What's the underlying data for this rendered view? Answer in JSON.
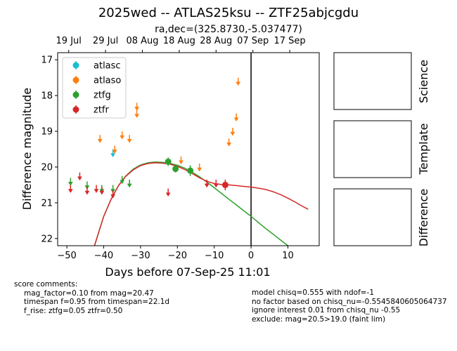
{
  "header": {
    "title": "2025wed -- ATLAS25ksu -- ZTF25abjcgdu",
    "subtitle": "ra,dec=(325.8730,-5.037477)"
  },
  "chart_data": {
    "type": "scatter",
    "xlabel": "Days before 07-Sep-25 11:01",
    "ylabel": "Difference magnitude",
    "xlim": [
      -52.5,
      18.5
    ],
    "ylim": [
      22.2,
      16.8
    ],
    "y_inverted": true,
    "x_ticks": [
      -50,
      -40,
      -30,
      -20,
      -10,
      0,
      10
    ],
    "x_tick_labels": [
      "−50",
      "−40",
      "−30",
      "−20",
      "−10",
      "0",
      "10"
    ],
    "y_ticks": [
      17,
      18,
      19,
      20,
      21,
      22
    ],
    "y_tick_labels": [
      "17",
      "18",
      "19",
      "20",
      "21",
      "22"
    ],
    "top_axis_ticks": [
      {
        "x": -49.5,
        "label": "19 Jul"
      },
      {
        "x": -39.5,
        "label": "29 Jul"
      },
      {
        "x": -29.5,
        "label": "08 Aug"
      },
      {
        "x": -19.5,
        "label": "18 Aug"
      },
      {
        "x": -9.5,
        "label": "28 Aug"
      },
      {
        "x": 0.5,
        "label": "07 Sep"
      },
      {
        "x": 10.5,
        "label": "17 Sep"
      }
    ],
    "legend_position": "top-left",
    "vertical_line_x": 0,
    "colors": {
      "atlasc": "#17becf",
      "atlaso": "#ff7f0e",
      "ztfg": "#2ca02c",
      "ztfr": "#d62728",
      "marker_line": "#000000"
    },
    "series": [
      {
        "name": "atlasc",
        "detections": [],
        "upper_limits": [
          {
            "x": -37.5,
            "y": 19.6
          }
        ]
      },
      {
        "name": "atlaso",
        "detections": [],
        "upper_limits": [
          {
            "x": -41.0,
            "y": 19.2
          },
          {
            "x": -37.0,
            "y": 19.5
          },
          {
            "x": -35.0,
            "y": 19.1
          },
          {
            "x": -33.0,
            "y": 19.2
          },
          {
            "x": -31.0,
            "y": 18.3
          },
          {
            "x": -31.0,
            "y": 18.5
          },
          {
            "x": -19.0,
            "y": 19.8
          },
          {
            "x": -14.0,
            "y": 20.0
          },
          {
            "x": -6.0,
            "y": 19.3
          },
          {
            "x": -5.0,
            "y": 19.0
          },
          {
            "x": -4.0,
            "y": 18.6
          },
          {
            "x": -3.5,
            "y": 17.6
          }
        ]
      },
      {
        "name": "ztfg",
        "detections": [
          {
            "x": -22.5,
            "y": 19.85,
            "err": 0.12
          },
          {
            "x": -20.5,
            "y": 20.05,
            "err": 0.1
          },
          {
            "x": -16.5,
            "y": 20.1,
            "err": 0.15
          }
        ],
        "upper_limits": [
          {
            "x": -49.0,
            "y": 20.4
          },
          {
            "x": -44.5,
            "y": 20.5
          },
          {
            "x": -40.5,
            "y": 20.6
          },
          {
            "x": -37.5,
            "y": 20.6
          },
          {
            "x": -35.0,
            "y": 20.35
          },
          {
            "x": -33.0,
            "y": 20.45
          }
        ]
      },
      {
        "name": "ztfr",
        "detections": [
          {
            "x": -7.0,
            "y": 20.5,
            "err": 0.15
          }
        ],
        "upper_limits": [
          {
            "x": -49.0,
            "y": 20.6
          },
          {
            "x": -46.5,
            "y": 20.25
          },
          {
            "x": -44.5,
            "y": 20.65
          },
          {
            "x": -42.0,
            "y": 20.6
          },
          {
            "x": -40.5,
            "y": 20.65
          },
          {
            "x": -37.5,
            "y": 20.75
          },
          {
            "x": -22.5,
            "y": 20.7
          },
          {
            "x": -12.0,
            "y": 20.45
          },
          {
            "x": -9.5,
            "y": 20.45
          }
        ]
      }
    ],
    "model_curves": [
      {
        "name": "ztfg",
        "x": [
          -42.5,
          -40,
          -38,
          -36,
          -34,
          -32,
          -30,
          -28,
          -26,
          -24,
          -22,
          -20,
          -18,
          -16,
          -14,
          -12,
          -10,
          -8,
          -6,
          -4,
          -2,
          0,
          2,
          4,
          6,
          8,
          10
        ],
        "y": [
          22.2,
          21.38,
          20.9,
          20.52,
          20.25,
          20.06,
          19.94,
          19.88,
          19.86,
          19.87,
          19.9,
          19.95,
          20.03,
          20.14,
          20.27,
          20.42,
          20.58,
          20.74,
          20.9,
          21.06,
          21.22,
          21.38,
          21.55,
          21.72,
          21.88,
          22.04,
          22.2
        ]
      },
      {
        "name": "ztfr",
        "x": [
          -42.5,
          -40,
          -38,
          -36,
          -34,
          -32,
          -30,
          -28,
          -26,
          -24,
          -22,
          -20,
          -18,
          -16,
          -14,
          -12,
          -10,
          -8,
          -6,
          -4,
          -2,
          0,
          2,
          4,
          6,
          8,
          10,
          12,
          14,
          15.5
        ],
        "y": [
          22.2,
          21.38,
          20.9,
          20.52,
          20.26,
          20.08,
          19.96,
          19.9,
          19.88,
          19.89,
          19.92,
          19.98,
          20.07,
          20.18,
          20.3,
          20.4,
          20.46,
          20.49,
          20.5,
          20.52,
          20.54,
          20.56,
          20.59,
          20.63,
          20.69,
          20.77,
          20.87,
          20.98,
          21.1,
          21.18
        ]
      }
    ]
  },
  "stamps": {
    "science_label": "Science",
    "template_label": "Template",
    "difference_label": "Difference"
  },
  "comments": {
    "heading": "score comments:",
    "lines": [
      "mag_factor=0.10 from mag=20.47",
      "timespan f=0.95 from timespan=22.1d",
      "f_rise: ztfg=0.05 ztfr=0.50"
    ]
  },
  "model_info": {
    "lines": [
      "model chisq=0.555 with ndof=-1",
      "no factor based on chisq_nu=-0.5545840605064737",
      "ignore interest 0.01 from chisq_nu -0.55",
      "exclude: mag=20.5>19.0 (faint lim)"
    ]
  }
}
